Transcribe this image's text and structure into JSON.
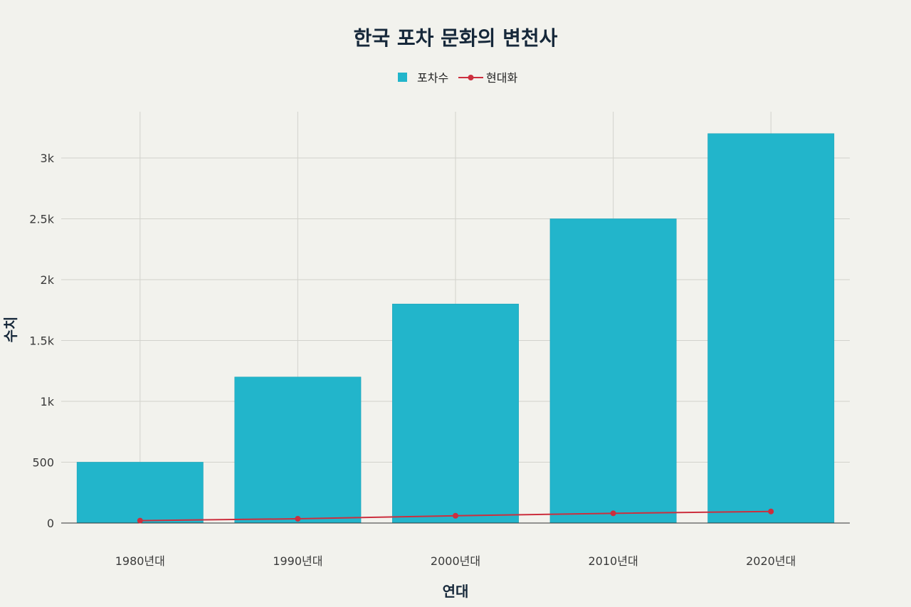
{
  "chart_data": {
    "type": "bar",
    "title": "한국 포차 문화의 변천사",
    "xlabel": "연대",
    "ylabel": "수치",
    "categories": [
      "1980년대",
      "1990년대",
      "2000년대",
      "2010년대",
      "2020년대"
    ],
    "series": [
      {
        "name": "포차수",
        "type": "bar",
        "color": "#22b5cb",
        "values": [
          500,
          1200,
          1800,
          2500,
          3200
        ]
      },
      {
        "name": "현대화",
        "type": "line",
        "color": "#cc2f3e",
        "values": [
          20,
          35,
          60,
          80,
          95
        ]
      }
    ],
    "ylim": [
      0,
      3380
    ],
    "y_ticks": [
      {
        "value": 0,
        "label": "0"
      },
      {
        "value": 500,
        "label": "500"
      },
      {
        "value": 1000,
        "label": "1k"
      },
      {
        "value": 1500,
        "label": "1.5k"
      },
      {
        "value": 2000,
        "label": "2k"
      },
      {
        "value": 2500,
        "label": "2.5k"
      },
      {
        "value": 3000,
        "label": "3k"
      }
    ],
    "grid": true,
    "legend_position": "top-center"
  }
}
